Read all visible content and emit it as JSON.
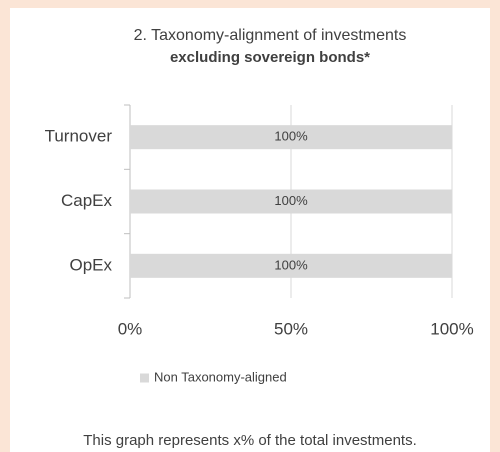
{
  "chart_data": {
    "type": "bar",
    "orientation": "horizontal",
    "title": "2. Taxonomy-alignment of investments",
    "subtitle": "excluding  sovereign bonds*",
    "categories": [
      "Turnover",
      "CapEx",
      "OpEx"
    ],
    "series": [
      {
        "name": "Non Taxonomy-aligned",
        "color": "#d9d9d9",
        "values": [
          100,
          100,
          100
        ],
        "value_labels": [
          "100%",
          "100%",
          "100%"
        ]
      }
    ],
    "xlim": [
      0,
      100
    ],
    "xticks": [
      {
        "value": 0,
        "label": "0%"
      },
      {
        "value": 50,
        "label": "50%"
      },
      {
        "value": 100,
        "label": "100%"
      }
    ],
    "grid": true,
    "legend": "bottom",
    "footnote": "This graph represents  x% of the total  investments."
  }
}
